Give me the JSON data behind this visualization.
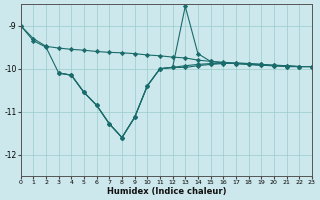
{
  "xlabel": "Humidex (Indice chaleur)",
  "bg_color": "#cce8ec",
  "line_color": "#1a6b6b",
  "grid_color": "#99cccc",
  "xlim": [
    0,
    23
  ],
  "ylim": [
    -12.5,
    -8.5
  ],
  "yticks": [
    -12,
    -11,
    -10,
    -9
  ],
  "xticks": [
    0,
    1,
    2,
    3,
    4,
    5,
    6,
    7,
    8,
    9,
    10,
    11,
    12,
    13,
    14,
    15,
    16,
    17,
    18,
    19,
    20,
    21,
    22,
    23
  ],
  "lines": [
    {
      "x": [
        0,
        1,
        2,
        3,
        4,
        5,
        6,
        7,
        8,
        9,
        10,
        11,
        12,
        13,
        14,
        15,
        16,
        17,
        18,
        19,
        20,
        21,
        22,
        23
      ],
      "y": [
        -9.0,
        -9.3,
        -9.48,
        -9.52,
        -9.55,
        -9.57,
        -9.6,
        -9.62,
        -9.63,
        -9.65,
        -9.68,
        -9.7,
        -9.73,
        -9.75,
        -9.8,
        -9.83,
        -9.85,
        -9.87,
        -9.88,
        -9.9,
        -9.92,
        -9.93,
        -9.95,
        -9.95
      ]
    },
    {
      "x": [
        0,
        1,
        2,
        3,
        4,
        5,
        6,
        7,
        8,
        9,
        10,
        11,
        12,
        13,
        14,
        15,
        16,
        17,
        18,
        19,
        20,
        21,
        22,
        23
      ],
      "y": [
        -9.0,
        -9.35,
        -9.5,
        -10.1,
        -10.15,
        -10.55,
        -10.85,
        -11.28,
        -11.6,
        -11.13,
        -10.4,
        -10.0,
        -9.97,
        -9.97,
        -9.93,
        -9.9,
        -9.88,
        -9.87,
        -9.88,
        -9.9,
        -9.92,
        -9.93,
        -9.95,
        -9.95
      ]
    },
    {
      "x": [
        3,
        4,
        5,
        6,
        7,
        8,
        9,
        10,
        11,
        12,
        13,
        14,
        15,
        16,
        17,
        18,
        19,
        20,
        21,
        22,
        23
      ],
      "y": [
        -10.1,
        -10.15,
        -10.55,
        -10.85,
        -11.28,
        -11.6,
        -11.13,
        -10.4,
        -10.0,
        -9.97,
        -9.93,
        -9.9,
        -9.88,
        -9.87,
        -9.88,
        -9.9,
        -9.92,
        -9.93,
        -9.95,
        -9.95,
        -9.95
      ]
    },
    {
      "x": [
        3,
        4,
        5,
        6,
        7,
        8,
        9,
        10,
        11,
        12,
        13,
        14,
        15,
        16,
        17,
        18,
        19,
        20,
        21,
        22,
        23
      ],
      "y": [
        -10.1,
        -10.15,
        -10.55,
        -10.85,
        -11.28,
        -11.6,
        -11.13,
        -10.4,
        -10.0,
        -9.97,
        -8.55,
        -9.65,
        -9.83,
        -9.87,
        -9.88,
        -9.9,
        -9.92,
        -9.93,
        -9.95,
        -9.95,
        -9.95
      ]
    }
  ],
  "marker": "D",
  "markersize": 2.2,
  "linewidth": 0.8
}
